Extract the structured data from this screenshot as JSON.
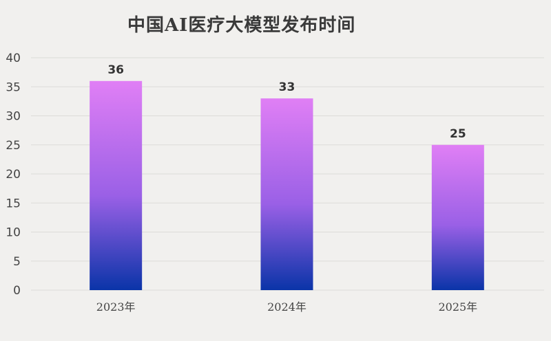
{
  "chart_data": {
    "type": "bar",
    "title": "中国AI医疗大模型发布时间",
    "categories": [
      "2023年",
      "2024年",
      "2025年"
    ],
    "values": [
      36,
      33,
      25
    ],
    "ylim": [
      0,
      40
    ],
    "yticks": [
      0,
      5,
      10,
      15,
      20,
      25,
      30,
      35,
      40
    ],
    "grid": true,
    "data_labels": true,
    "colors": {
      "bar_top": "#e07ff5",
      "bar_mid": "#9a60e6",
      "bar_bottom": "#0a34a8",
      "background": "#f1f0ee"
    }
  }
}
